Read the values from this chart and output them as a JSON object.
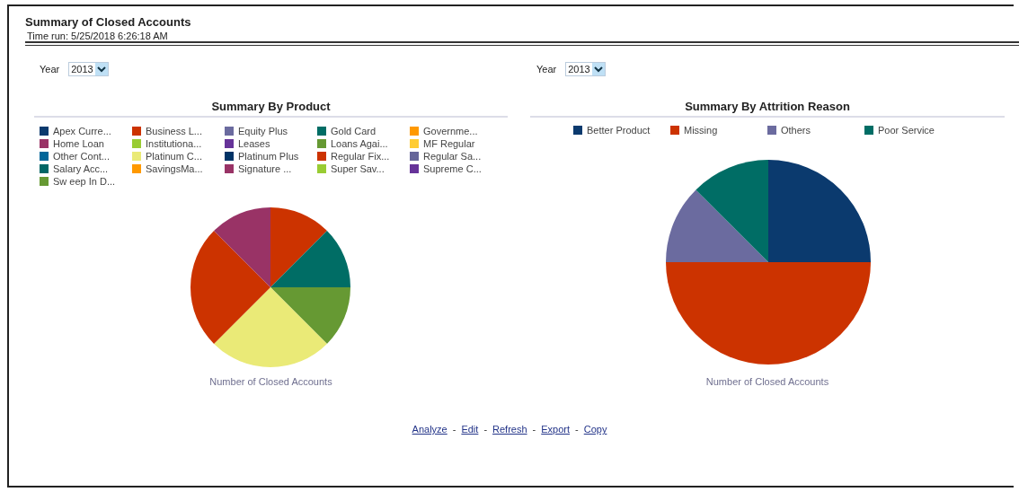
{
  "chart_data": [
    {
      "type": "other",
      "title": "Summary of Closed Accounts",
      "subtitle": "Time run: 5/25/2018 6:26:18 AM"
    },
    {
      "type": "pie",
      "title": "Summary By Product",
      "xlabel": "Number of Closed Accounts",
      "annotations": [
        "Year",
        "2013"
      ],
      "legend": "top",
      "categories": [
        "Apex Curre...",
        "Business L...",
        "Equity Plus",
        "Gold Card",
        "Governme...",
        "Home Loan",
        "Institutiona...",
        "Leases",
        "Loans Agai...",
        "MF Regular",
        "Other Cont...",
        "Platinum C...",
        "Platinum Plus",
        "Regular Fix...",
        "Regular Sa...",
        "Salary Acc...",
        "SavingsMa...",
        "Signature ...",
        "Super Sav...",
        "Supreme C...",
        "Sw eep In D..."
      ],
      "values": [
        0,
        12.5,
        0,
        12.5,
        0,
        0,
        0,
        0,
        12.5,
        0,
        0,
        25,
        0,
        25,
        0,
        0,
        0,
        12.5,
        0,
        0,
        0
      ],
      "colors": [
        "#0b3a6e",
        "#cc3300",
        "#6b6b9f",
        "#006d65",
        "#ff9900",
        "#993366",
        "#99cc33",
        "#663399",
        "#669933",
        "#ffcc33",
        "#006699",
        "#eaea77",
        "#003366",
        "#cc3300",
        "#666699",
        "#006666",
        "#ff9900",
        "#993366",
        "#99cc33",
        "#663399",
        "#669933"
      ]
    },
    {
      "type": "pie",
      "title": "Summary By Attrition Reason",
      "xlabel": "Number of Closed Accounts",
      "annotations": [
        "Year",
        "2013"
      ],
      "legend": "top",
      "categories": [
        "Better Product",
        "Missing",
        "Others",
        "Poor Service"
      ],
      "values": [
        25,
        50,
        12.5,
        12.5
      ],
      "colors": [
        "#0b3a6e",
        "#cc3300",
        "#6b6b9f",
        "#006d65"
      ]
    },
    {
      "type": "other",
      "annotations": [
        "Analyze",
        "-",
        "Edit",
        "-",
        "Refresh",
        "-",
        "Export",
        "-",
        "Copy"
      ]
    }
  ]
}
